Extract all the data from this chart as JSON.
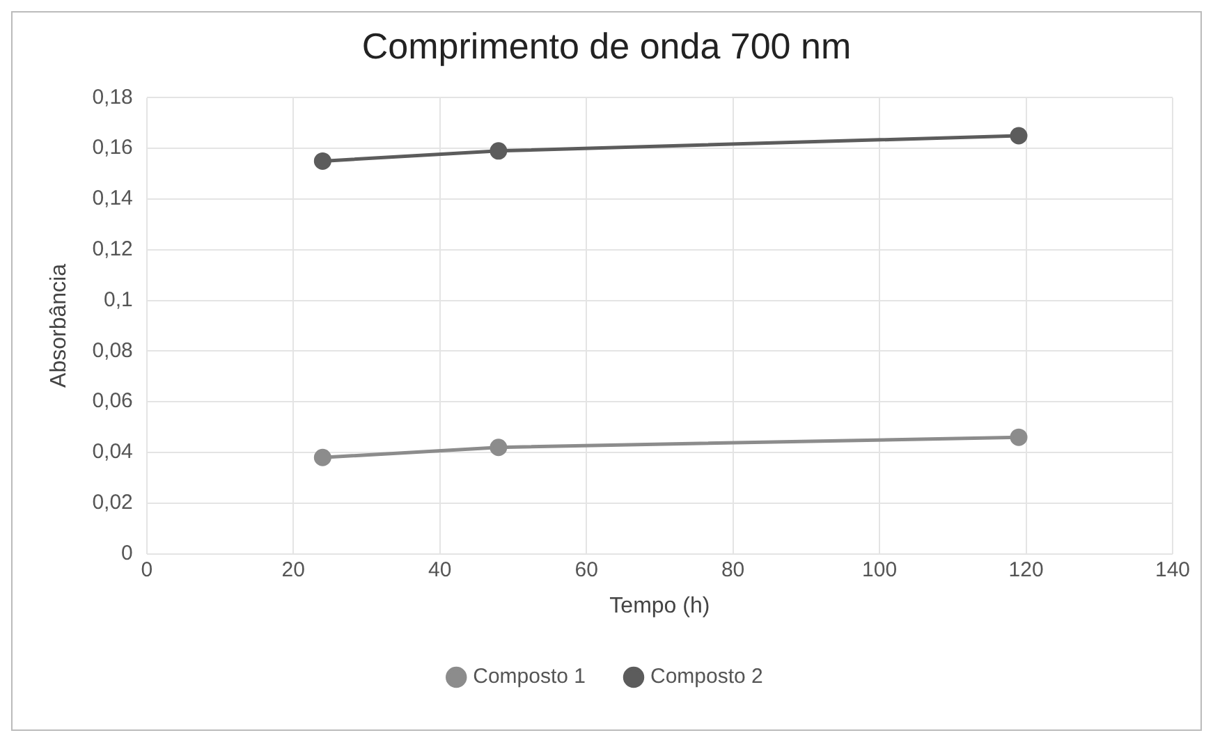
{
  "chart_data": {
    "type": "line",
    "title": "Comprimento de onda 700 nm",
    "xlabel": "Tempo (h)",
    "ylabel": "Absorbância",
    "x": [
      24,
      48,
      119
    ],
    "series": [
      {
        "name": "Composto 1",
        "color": "#8c8c8c",
        "values": [
          0.038,
          0.042,
          0.046
        ]
      },
      {
        "name": "Composto 2",
        "color": "#5c5c5c",
        "values": [
          0.155,
          0.159,
          0.165
        ]
      }
    ],
    "xlim": [
      0,
      140
    ],
    "xticks": [
      0,
      20,
      40,
      60,
      80,
      100,
      120,
      140
    ],
    "ylim": [
      0,
      0.18
    ],
    "yticks": [
      0,
      {
        "value": 0.02,
        "label": "0,02"
      },
      {
        "value": 0.04,
        "label": "0,04"
      },
      {
        "value": 0.06,
        "label": "0,06"
      },
      {
        "value": 0.08,
        "label": "0,08"
      },
      {
        "value": 0.1,
        "label": "0,1"
      },
      {
        "value": 0.12,
        "label": "0,12"
      },
      {
        "value": 0.14,
        "label": "0,14"
      },
      {
        "value": 0.16,
        "label": "0,16"
      },
      {
        "value": 0.18,
        "label": "0,18"
      }
    ],
    "grid": true,
    "legend": "bottom",
    "marker": "circle",
    "line_style": "solid"
  }
}
